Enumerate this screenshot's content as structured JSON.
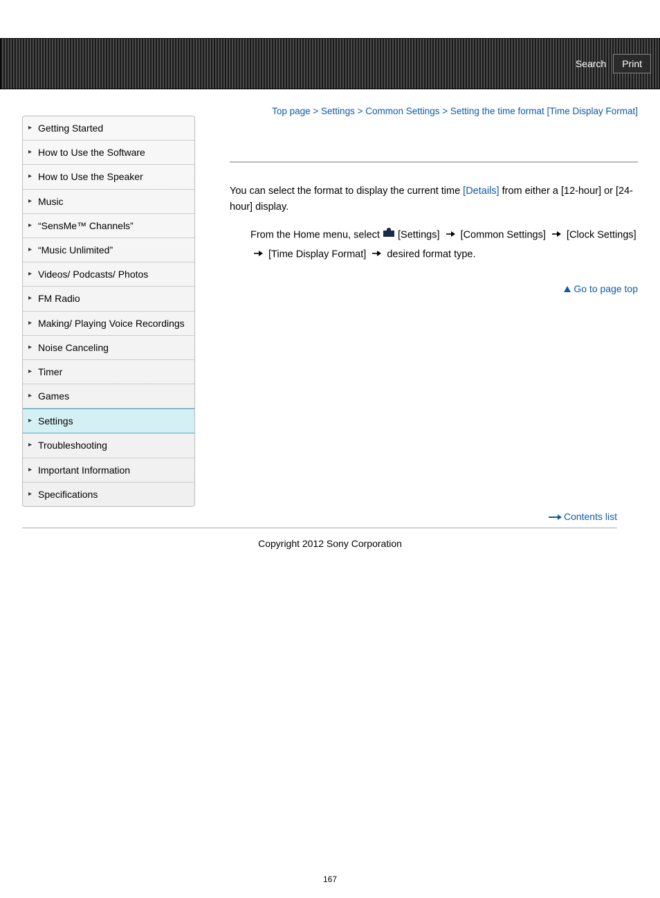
{
  "header": {
    "search": "Search",
    "print": "Print"
  },
  "sidebar": {
    "items": [
      {
        "label": "Getting Started",
        "active": false
      },
      {
        "label": "How to Use the Software",
        "active": false
      },
      {
        "label": "How to Use the Speaker",
        "active": false
      },
      {
        "label": "Music",
        "active": false
      },
      {
        "label": "“SensMe™ Channels”",
        "active": false
      },
      {
        "label": "“Music Unlimited”",
        "active": false
      },
      {
        "label": "Videos/ Podcasts/ Photos",
        "active": false
      },
      {
        "label": "FM Radio",
        "active": false
      },
      {
        "label": "Making/ Playing Voice Recordings",
        "active": false
      },
      {
        "label": "Noise Canceling",
        "active": false
      },
      {
        "label": "Timer",
        "active": false
      },
      {
        "label": "Games",
        "active": false
      },
      {
        "label": "Settings",
        "active": true
      },
      {
        "label": "Troubleshooting",
        "active": false
      },
      {
        "label": "Important Information",
        "active": false
      },
      {
        "label": "Specifications",
        "active": false
      }
    ],
    "contents_list": "Contents list"
  },
  "breadcrumb": {
    "items": [
      "Top page",
      "Settings",
      "Common Settings",
      "Setting the time format [Time Display Format]"
    ],
    "sep": ">"
  },
  "content": {
    "intro_pre": "You can select the format to display the current time ",
    "intro_link": "[Details]",
    "intro_post": " from either a [12-hour] or [24-hour] display.",
    "step_pre": "From the Home menu, select ",
    "step_path": [
      "[Settings]",
      "[Common Settings]",
      "[Clock Settings]",
      "[Time Display Format]"
    ],
    "step_tail": " desired format type."
  },
  "gotop": "Go to page top",
  "copyright": "Copyright 2012 Sony Corporation",
  "pagenum": "167",
  "colors": {
    "link": "#0d5aa7",
    "text": "#000000",
    "active_bg": "#d5f0f5"
  }
}
